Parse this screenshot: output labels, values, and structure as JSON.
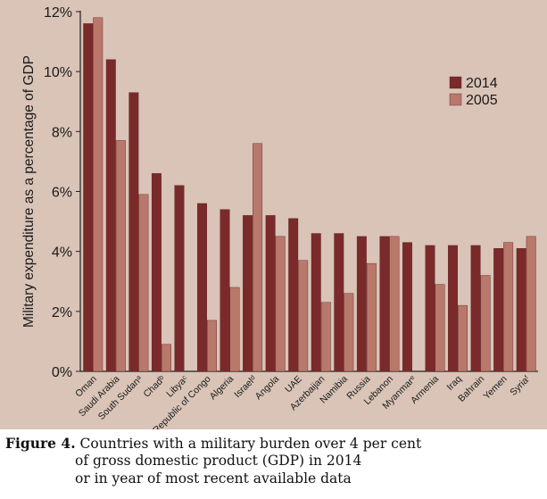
{
  "chart_data": {
    "type": "bar",
    "title": "",
    "xlabel": "",
    "ylabel": "Military expenditure as a percentage of GDP",
    "ylim": [
      0,
      12
    ],
    "yticks": [
      0,
      2,
      4,
      6,
      8,
      10,
      12
    ],
    "ytick_labels": [
      "0%",
      "2%",
      "4%",
      "6%",
      "8%",
      "10%",
      "12%"
    ],
    "categories": [
      "Oman",
      "Saudi Arabia",
      "South Sudanᵃ",
      "Chadᵇ",
      "Libyaᶜ",
      "Republic of Congo",
      "Algeria",
      "Israelᵈ",
      "Angola",
      "UAE",
      "Azerbaijan",
      "Namibia",
      "Russia",
      "Lebanon",
      "Myanmarᵉ",
      "Armenia",
      "Iraq",
      "Bahrain",
      "Yemen",
      "Syriaᶠ"
    ],
    "series": [
      {
        "name": "2014",
        "color": "#7a2a2a",
        "values": [
          11.6,
          10.4,
          9.3,
          6.6,
          6.2,
          5.6,
          5.4,
          5.2,
          5.2,
          5.1,
          4.6,
          4.6,
          4.5,
          4.5,
          4.3,
          4.2,
          4.2,
          4.2,
          4.1,
          4.1
        ]
      },
      {
        "name": "2005",
        "color": "#b9786c",
        "values": [
          11.8,
          7.7,
          5.9,
          0.9,
          null,
          1.7,
          2.8,
          7.6,
          4.5,
          3.7,
          2.3,
          2.6,
          3.6,
          4.5,
          null,
          2.9,
          2.2,
          3.2,
          4.3,
          4.5
        ]
      }
    ],
    "legend_position": "top-right",
    "grid": false
  },
  "caption": {
    "label": "Figure 4.",
    "line1": "Countries with a military burden over 4 per cent",
    "line2": "of gross domestic product (GDP) in 2014",
    "line3": "or in year of most recent available data"
  }
}
